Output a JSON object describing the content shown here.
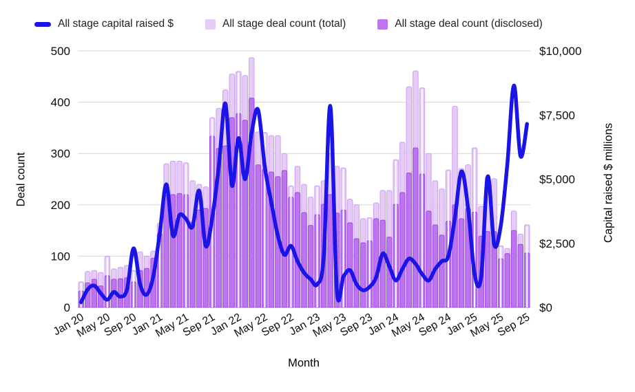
{
  "legend": {
    "items": [
      {
        "label": "All stage capital raised $",
        "type": "line",
        "color": "#1a15e6"
      },
      {
        "label": "All stage deal count (total)",
        "type": "bar",
        "color": "#e6cbf7"
      },
      {
        "label": "All stage deal count (disclosed)",
        "type": "bar",
        "color": "#bd74ee"
      }
    ]
  },
  "axes": {
    "left_title": "Deal count",
    "right_title": "Capital raised $ millions",
    "x_title": "Month"
  },
  "chart_data": {
    "type": "combo-bar-line",
    "grid": true,
    "legend_position": "top",
    "categories": [
      "Jan 20",
      "Feb 20",
      "Mar 20",
      "Apr 20",
      "May 20",
      "Jun 20",
      "Jul 20",
      "Aug 20",
      "Sep 20",
      "Oct 20",
      "Nov 20",
      "Dec 20",
      "Jan 21",
      "Feb 21",
      "Mar 21",
      "Apr 21",
      "May 21",
      "Jun 21",
      "Jul 21",
      "Aug 21",
      "Sep 21",
      "Oct 21",
      "Nov 21",
      "Dec 21",
      "Jan 22",
      "Feb 22",
      "Mar 22",
      "Apr 22",
      "May 22",
      "Jun 22",
      "Jul 22",
      "Aug 22",
      "Sep 22",
      "Oct 22",
      "Nov 22",
      "Dec 22",
      "Jan 23",
      "Feb 23",
      "Mar 23",
      "Apr 23",
      "May 23",
      "Jun 23",
      "Jul 23",
      "Aug 23",
      "Sep 23",
      "Oct 23",
      "Nov 23",
      "Dec 23",
      "Jan 24",
      "Feb 24",
      "Mar 24",
      "Apr 24",
      "May 24",
      "Jun 24",
      "Jul 24",
      "Aug 24",
      "Sep 24",
      "Oct 24",
      "Nov 24",
      "Dec 24",
      "Jan 25",
      "Feb 25",
      "Mar 25",
      "Apr 25",
      "May 25",
      "Jun 25",
      "Jul 25",
      "Aug 25",
      "Sep 25"
    ],
    "x_tick_every": 4,
    "series": [
      {
        "name": "All stage deal count (total)",
        "type": "bar",
        "axis": "left",
        "fill": "#e6cbf7",
        "stroke": "#cb9ff2",
        "values": [
          50,
          70,
          72,
          68,
          100,
          75,
          78,
          82,
          72,
          108,
          100,
          110,
          164,
          280,
          285,
          285,
          282,
          247,
          240,
          235,
          370,
          388,
          424,
          455,
          460,
          452,
          487,
          342,
          341,
          335,
          335,
          300,
          237,
          275,
          240,
          215,
          237,
          247,
          300,
          275,
          272,
          211,
          200,
          173,
          175,
          204,
          228,
          228,
          288,
          322,
          430,
          461,
          428,
          300,
          247,
          231,
          268,
          392,
          271,
          278,
          311,
          197,
          255,
          251,
          120,
          115,
          188,
          143,
          161
        ]
      },
      {
        "name": "All stage deal count (disclosed)",
        "type": "bar",
        "axis": "left",
        "fill": "#bd74ee",
        "stroke": "#9a4ce0",
        "values": [
          32,
          48,
          55,
          42,
          62,
          55,
          56,
          58,
          50,
          72,
          76,
          96,
          144,
          218,
          220,
          222,
          220,
          166,
          190,
          193,
          334,
          310,
          315,
          370,
          378,
          365,
          408,
          278,
          270,
          264,
          255,
          267,
          215,
          224,
          185,
          160,
          181,
          201,
          220,
          184,
          190,
          165,
          134,
          126,
          130,
          173,
          170,
          137,
          201,
          224,
          262,
          311,
          260,
          188,
          161,
          141,
          168,
          200,
          173,
          193,
          186,
          139,
          148,
          148,
          95,
          105,
          150,
          123,
          106
        ]
      },
      {
        "name": "All stage capital raised $",
        "type": "line",
        "axis": "right",
        "stroke": "#1a15e6",
        "width": 5.5,
        "values": [
          200,
          700,
          850,
          550,
          300,
          600,
          420,
          700,
          2300,
          900,
          500,
          1200,
          2900,
          4800,
          2800,
          3600,
          3450,
          3150,
          4550,
          2400,
          3500,
          5500,
          7950,
          4750,
          6600,
          5000,
          6800,
          7700,
          5500,
          4100,
          2800,
          2050,
          2400,
          1800,
          1350,
          1100,
          900,
          2000,
          7850,
          670,
          1200,
          1450,
          900,
          670,
          800,
          1180,
          2100,
          1600,
          1050,
          1500,
          1900,
          1700,
          1300,
          1050,
          1500,
          1800,
          2000,
          3500,
          5300,
          3900,
          1300,
          1180,
          5100,
          2450,
          3200,
          5600,
          8650,
          5900,
          7150
        ]
      }
    ],
    "y_left": {
      "min": 0,
      "max": 500,
      "ticks": [
        0,
        100,
        200,
        300,
        400,
        500
      ]
    },
    "y_right": {
      "min": 0,
      "max": 10000,
      "tick_values": [
        0,
        2500,
        5000,
        7500,
        10000
      ],
      "tick_labels": [
        "$0",
        "$2,500",
        "$5,000",
        "$7,500",
        "$10,000"
      ]
    },
    "grid_color": "#d6d6d6",
    "baseline_color": "#9e9e9e",
    "tick_separator_color": "#ffffff"
  }
}
